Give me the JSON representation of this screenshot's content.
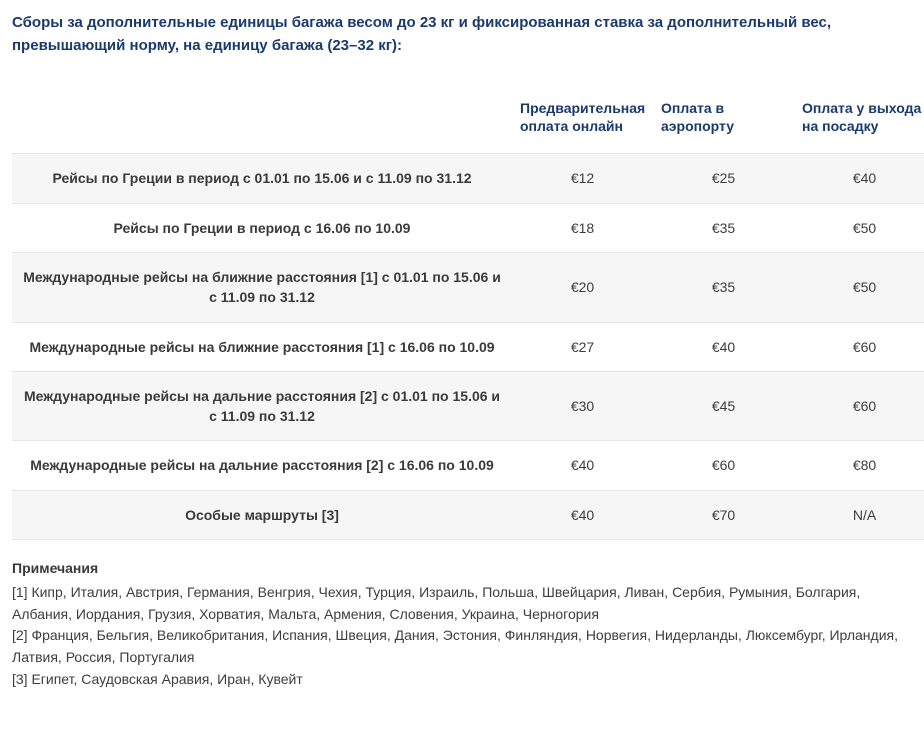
{
  "heading": "Сборы за дополнительные единицы багажа весом до 23 кг и фиксированная ставка за дополнительный вес, превышающий норму, на единицу багажа (23–32 кг):",
  "table": {
    "columns": [
      "",
      "Предварительная оплата онлайн",
      "Оплата в аэропорту",
      "Оплата у выхода на посадку"
    ],
    "rows": [
      {
        "label": "Рейсы по Греции в период с 01.01 по 15.06 и с 11.09 по 31.12",
        "c1": "€12",
        "c2": "€25",
        "c3": "€40"
      },
      {
        "label": "Рейсы по Греции в период с 16.06 по 10.09",
        "c1": "€18",
        "c2": "€35",
        "c3": "€50"
      },
      {
        "label": "Международные рейсы на ближние расстояния [1] с 01.01 по 15.06 и с 11.09 по 31.12",
        "c1": "€20",
        "c2": "€35",
        "c3": "€50"
      },
      {
        "label": "Международные рейсы на ближние расстояния [1] с 16.06 по 10.09",
        "c1": "€27",
        "c2": "€40",
        "c3": "€60"
      },
      {
        "label": "Международные рейсы на дальние расстояния [2] с 01.01 по 15.06 и с 11.09 по 31.12",
        "c1": "€30",
        "c2": "€45",
        "c3": "€60"
      },
      {
        "label": "Международные рейсы на дальние расстояния [2] с 16.06 по 10.09",
        "c1": "€40",
        "c2": "€60",
        "c3": "€80"
      },
      {
        "label": "Особые маршруты [3]",
        "c1": "€40",
        "c2": "€70",
        "c3": "N/A"
      }
    ],
    "stripe_color": "#f6f6f6",
    "border_color": "#e5e5e5",
    "header_color": "#1a3a6e",
    "text_color": "#3d3d3d"
  },
  "notes": {
    "title": "Примечания",
    "items": [
      "[1] Кипр, Италия, Австрия, Германия, Венгрия, Чехия, Турция, Израиль, Польша, Швейцария, Ливан, Сербия, Румыния, Болгария, Албания, Иордания, Грузия, Хорватия, Мальта, Армения, Словения, Украина, Черногория",
      "[2] Франция, Бельгия, Великобритания, Испания, Швеция, Дания, Эстония, Финляндия, Норвегия, Нидерланды, Люксембург, Ирландия, Латвия, Россия, Португалия",
      "[3] Египет, Саудовская Аравия, Иран, Кувейт"
    ]
  }
}
